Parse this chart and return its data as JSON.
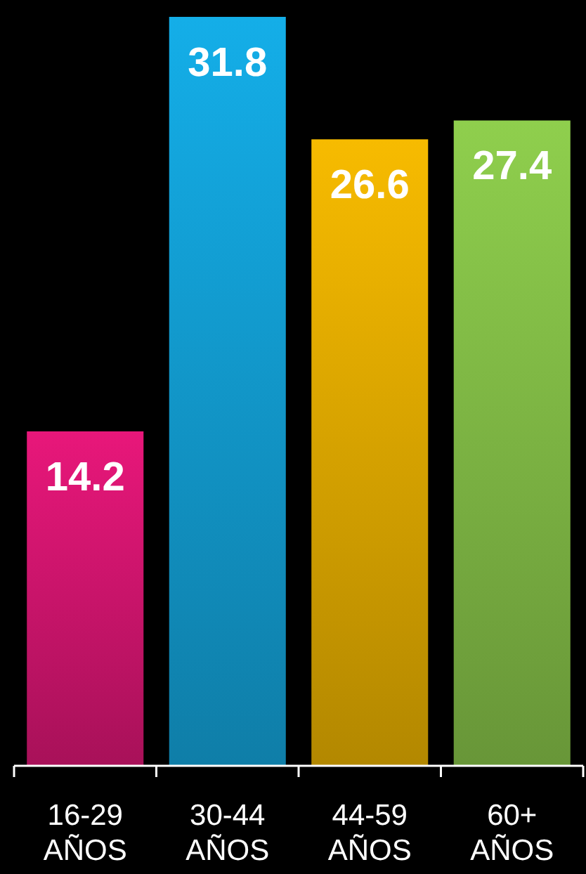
{
  "chart_data": {
    "type": "bar",
    "categories": [
      "16-29 AÑOS",
      "30-44 AÑOS",
      "44-59 AÑOS",
      "60+ AÑOS"
    ],
    "values": [
      14.2,
      31.8,
      26.6,
      27.4
    ],
    "colors": [
      "#e8177a",
      "#14aee8",
      "#f7bb00",
      "#8fcf4d"
    ],
    "data_labels": true
  }
}
